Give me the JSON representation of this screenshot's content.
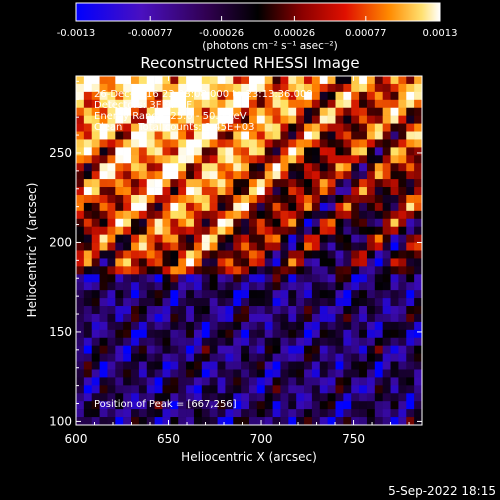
{
  "colorbar": {
    "ticks": [
      "-0.0013",
      "-0.00077",
      "-0.00026",
      "0.00026",
      "0.00077",
      "0.0013"
    ],
    "unit_label": "(photons cm⁻² s⁻¹ asec⁻²)",
    "range": [
      -0.0013,
      0.0013
    ]
  },
  "chart_data": {
    "type": "heatmap",
    "title": "Reconstructed RHESSI Image",
    "xlabel": "Heliocentric X (arcsec)",
    "ylabel": "Heliocentric Y (arcsec)",
    "xlim": [
      600,
      787
    ],
    "ylim": [
      98,
      293
    ],
    "x_ticks": [
      "600",
      "650",
      "700",
      "750"
    ],
    "y_ticks": [
      "100",
      "150",
      "200",
      "250"
    ],
    "annotations": [
      "26-Dec-2016 23:08:08.000 to 23:13:36.000",
      "Detectors: 3F 9F 7F",
      "Energy Range: 25.0 - 50.0 keV",
      "Clean     Total counts: 3.45E+03"
    ],
    "peak_label": "Position of Peak = [667,256]",
    "peak": [
      667,
      256
    ],
    "colormap": [
      "#0000ff",
      "#3a0ab0",
      "#200040",
      "#000000",
      "#5a0000",
      "#d01000",
      "#ff8000",
      "#ffe060",
      "#ffffff"
    ]
  },
  "footer": {
    "timestamp": "5-Sep-2022 18:15"
  }
}
